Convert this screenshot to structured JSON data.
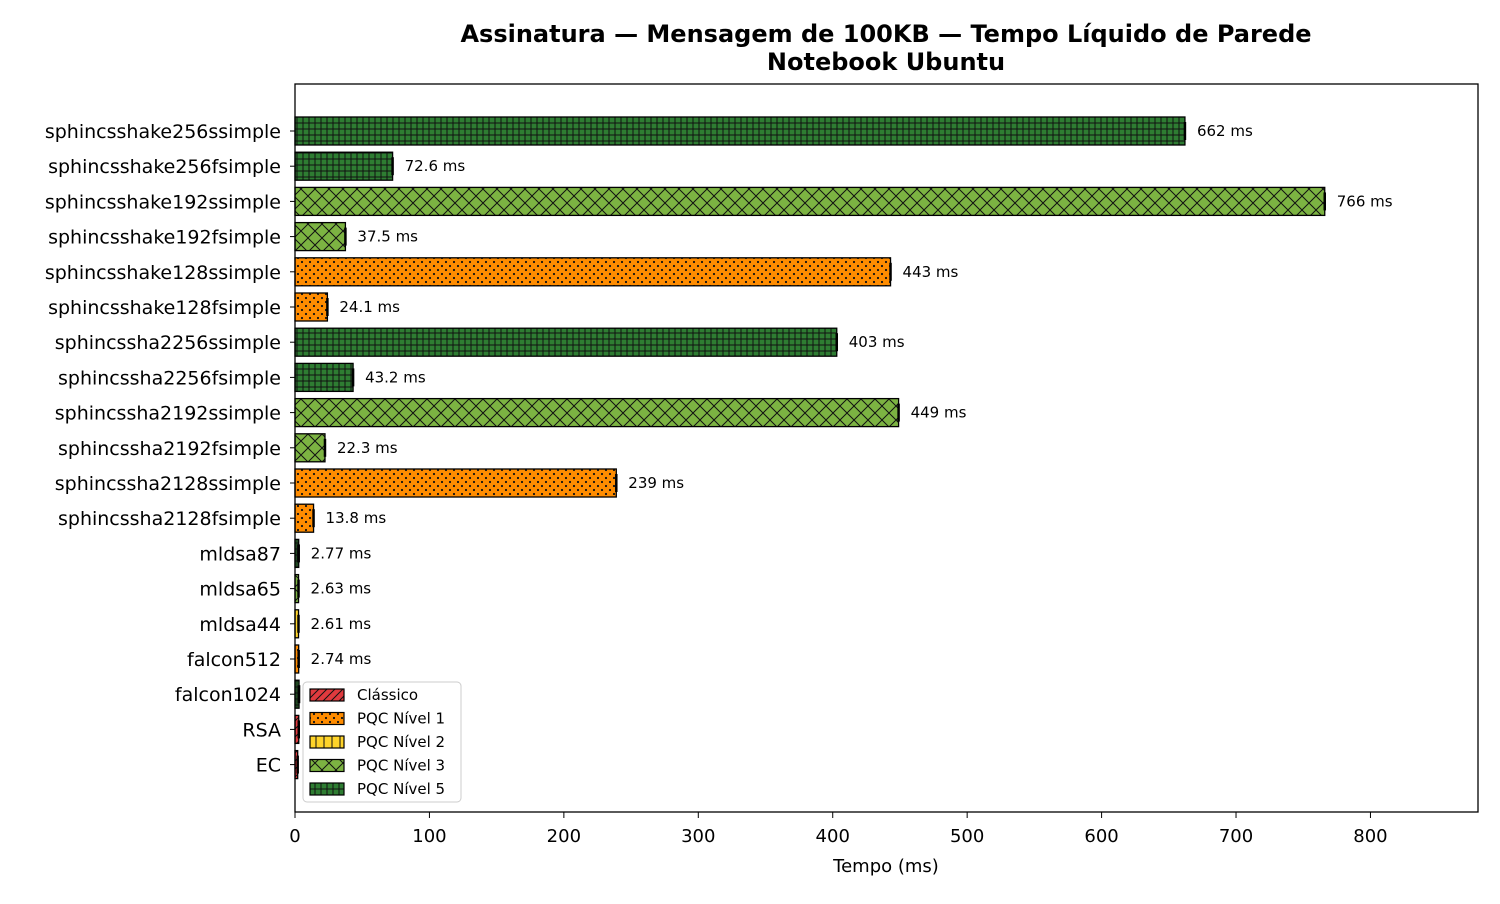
{
  "chart_data": {
    "type": "bar",
    "orientation": "horizontal",
    "title": "Assinatura — Mensagem de 100KB — Tempo Líquido de Parede",
    "subtitle": "Notebook Ubuntu",
    "xlabel": "Tempo (ms)",
    "ylabel": "",
    "xlim": [
      0,
      880
    ],
    "xticks": [
      0,
      100,
      200,
      300,
      400,
      500,
      600,
      700,
      800
    ],
    "grid": false,
    "legend_position": "bottom-left",
    "categories": [
      "sphincsshake256ssimple",
      "sphincsshake256fsimple",
      "sphincsshake192ssimple",
      "sphincsshake192fsimple",
      "sphincsshake128ssimple",
      "sphincsshake128fsimple",
      "sphincssha2256ssimple",
      "sphincssha2256fsimple",
      "sphincssha2192ssimple",
      "sphincssha2192fsimple",
      "sphincssha2128ssimple",
      "sphincssha2128fsimple",
      "mldsa87",
      "mldsa65",
      "mldsa44",
      "falcon512",
      "falcon1024",
      "RSA",
      "EC"
    ],
    "values": [
      662,
      72.6,
      766,
      37.5,
      443,
      24.1,
      403,
      43.2,
      449,
      22.3,
      239,
      13.8,
      2.77,
      2.63,
      2.61,
      2.74,
      3.0,
      2.8,
      2.0
    ],
    "value_labels": [
      "662 ms",
      "72.6 ms",
      "766 ms",
      "37.5 ms",
      "443 ms",
      "24.1 ms",
      "403 ms",
      "43.2 ms",
      "449 ms",
      "22.3 ms",
      "239 ms",
      "13.8 ms",
      "2.77 ms",
      "2.63 ms",
      "2.61 ms",
      "2.74 ms",
      "",
      "",
      ""
    ],
    "groups": [
      "PQC Nível 5",
      "PQC Nível 5",
      "PQC Nível 3",
      "PQC Nível 3",
      "PQC Nível 1",
      "PQC Nível 1",
      "PQC Nível 5",
      "PQC Nível 5",
      "PQC Nível 3",
      "PQC Nível 3",
      "PQC Nível 1",
      "PQC Nível 1",
      "PQC Nível 5",
      "PQC Nível 3",
      "PQC Nível 2",
      "PQC Nível 1",
      "PQC Nível 5",
      "Clássico",
      "Clássico"
    ],
    "legend": [
      {
        "name": "Clássico",
        "color": "#e03a3e",
        "hatch": "diagonal"
      },
      {
        "name": "PQC Nível 1",
        "color": "#ff8c00",
        "hatch": "dots"
      },
      {
        "name": "PQC Nível 2",
        "color": "#ffd42a",
        "hatch": "vertical"
      },
      {
        "name": "PQC Nível 3",
        "color": "#7cb342",
        "hatch": "cross"
      },
      {
        "name": "PQC Nível 5",
        "color": "#2e7d32",
        "hatch": "grid"
      }
    ]
  }
}
